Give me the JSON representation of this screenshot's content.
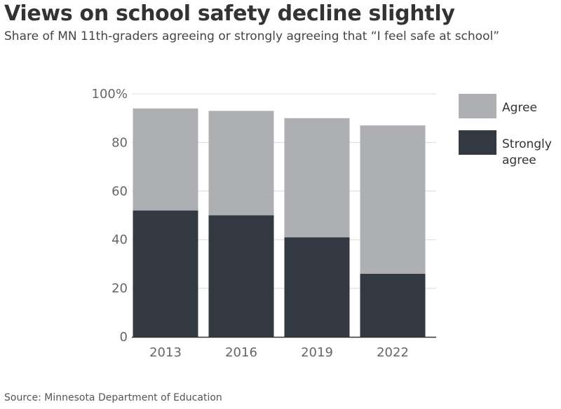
{
  "title": "Views on school safety decline slightly",
  "subtitle": "Share of MN 11th-graders agreeing or strongly agreeing that “I feel safe at school”",
  "source": "Source: Minnesota Department of Education",
  "chart_data": {
    "type": "bar",
    "stacked": true,
    "categories": [
      "2013",
      "2016",
      "2019",
      "2022"
    ],
    "series": [
      {
        "name": "Strongly agree",
        "legend_lines": [
          "Strongly",
          "agree"
        ],
        "color": "#333942",
        "values": [
          52,
          50,
          41,
          26
        ]
      },
      {
        "name": "Agree",
        "legend_lines": [
          "Agree"
        ],
        "color": "#aeafb2",
        "values": [
          42,
          43,
          49,
          61
        ]
      }
    ],
    "ylim": [
      0,
      100
    ],
    "yticks": [
      0,
      20,
      40,
      60,
      80,
      100
    ],
    "ytick_labels": [
      "0",
      "20",
      "40",
      "60",
      "80",
      "100%"
    ],
    "grid": true,
    "legend_position": "right",
    "xlabel": "",
    "ylabel": ""
  }
}
